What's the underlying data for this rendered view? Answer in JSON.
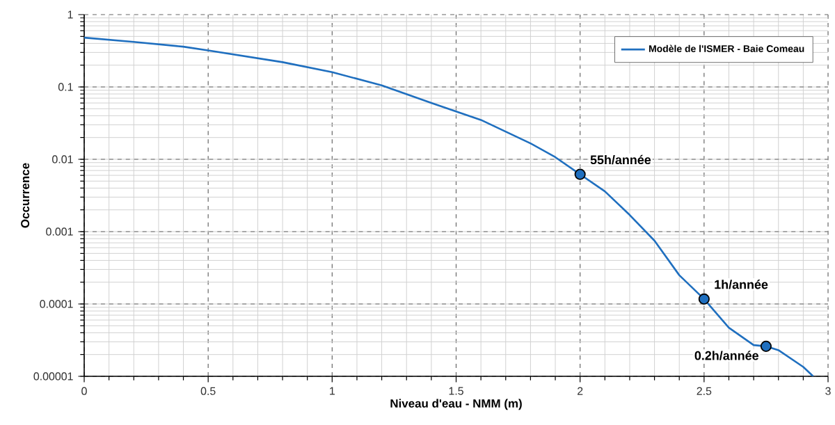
{
  "chart_data": {
    "type": "line",
    "xlabel": "Niveau d'eau - NMM (m)",
    "ylabel": "Occurrence",
    "log": "y",
    "grid": true,
    "legend": "top right",
    "xlim": [
      0,
      3
    ],
    "xticks": [
      0,
      0.5,
      1,
      1.5,
      2,
      2.5,
      3
    ],
    "ylim": [
      1e-05,
      1
    ],
    "yticks": [
      {
        "value": 1e-05,
        "label": "0.00001"
      },
      {
        "value": 0.0001,
        "label": "0.0001"
      },
      {
        "value": 0.001,
        "label": "0.001"
      },
      {
        "value": 0.01,
        "label": "0.01"
      },
      {
        "value": 0.1,
        "label": "0.1"
      },
      {
        "value": 1,
        "label": "1"
      }
    ],
    "series": [
      {
        "name": "Modèle de l'ISMER - Baie Comeau",
        "color": "#1f6fbf",
        "marker": "none",
        "line_style": "solid",
        "x": [
          0,
          0.2,
          0.4,
          0.5,
          0.8,
          1.0,
          1.2,
          1.4,
          1.6,
          1.8,
          1.9,
          2.0,
          2.1,
          2.2,
          2.3,
          2.4,
          2.5,
          2.6,
          2.7,
          2.75,
          2.8,
          2.9,
          2.94
        ],
        "values": [
          0.48,
          0.42,
          0.36,
          0.32,
          0.22,
          0.16,
          0.105,
          0.06,
          0.035,
          0.0166,
          0.0107,
          0.0062,
          0.0036,
          0.0017,
          0.00075,
          0.00025,
          0.000117,
          4.7e-05,
          2.7e-05,
          2.6e-05,
          2.3e-05,
          1.35e-05,
          1e-05
        ]
      },
      {
        "type": "scatter",
        "color": "#1f6fbf",
        "marker": "circle",
        "x": [
          2,
          2.5,
          2.75
        ],
        "values": [
          0.0062,
          0.000117,
          2.6e-05
        ]
      }
    ],
    "annotations": [
      {
        "text": "55h/année",
        "x": 2,
        "y": 0.0062
      },
      {
        "text": "1h/année",
        "x": 2.5,
        "y": 0.000117
      },
      {
        "text": "0.2h/année",
        "x": 2.75,
        "y": 2.6e-05
      }
    ]
  }
}
